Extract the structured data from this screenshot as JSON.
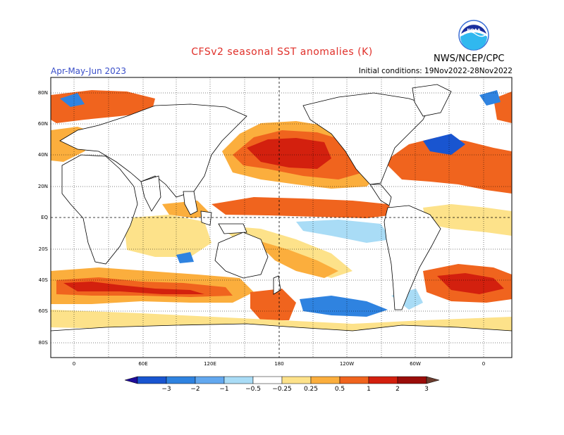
{
  "header": {
    "title": "CFSv2 seasonal SST anomalies (K)",
    "season": "Apr-May-Jun 2023",
    "initial_conditions": "Initial conditions: 19Nov2022-28Nov2022",
    "agency": "NWS/NCEP/CPC",
    "logo_text": "NOAA"
  },
  "map": {
    "projection": "equirectangular",
    "lon_range": [
      -20,
      380
    ],
    "lat_range": [
      -90,
      90
    ],
    "lat_ticks": [
      "80N",
      "60N",
      "40N",
      "20N",
      "EQ",
      "20S",
      "40S",
      "60S",
      "80S"
    ],
    "lon_ticks": [
      "0",
      "60E",
      "120E",
      "180",
      "120W",
      "60W",
      "0"
    ],
    "dashed_reference_lines": [
      "EQ",
      "180"
    ]
  },
  "colorbar": {
    "labels": [
      "−3",
      "−2",
      "−1",
      "−0.5",
      "−0.25",
      "0.25",
      "0.5",
      "1",
      "2",
      "3"
    ],
    "colors": [
      "#1f0c9a",
      "#1955d0",
      "#2f83e0",
      "#63a8ef",
      "#a9dcf6",
      "#ffffff",
      "#fde28a",
      "#fbae3d",
      "#f0641e",
      "#d3200e",
      "#9a0d0a",
      "#6b3c2e"
    ]
  }
}
